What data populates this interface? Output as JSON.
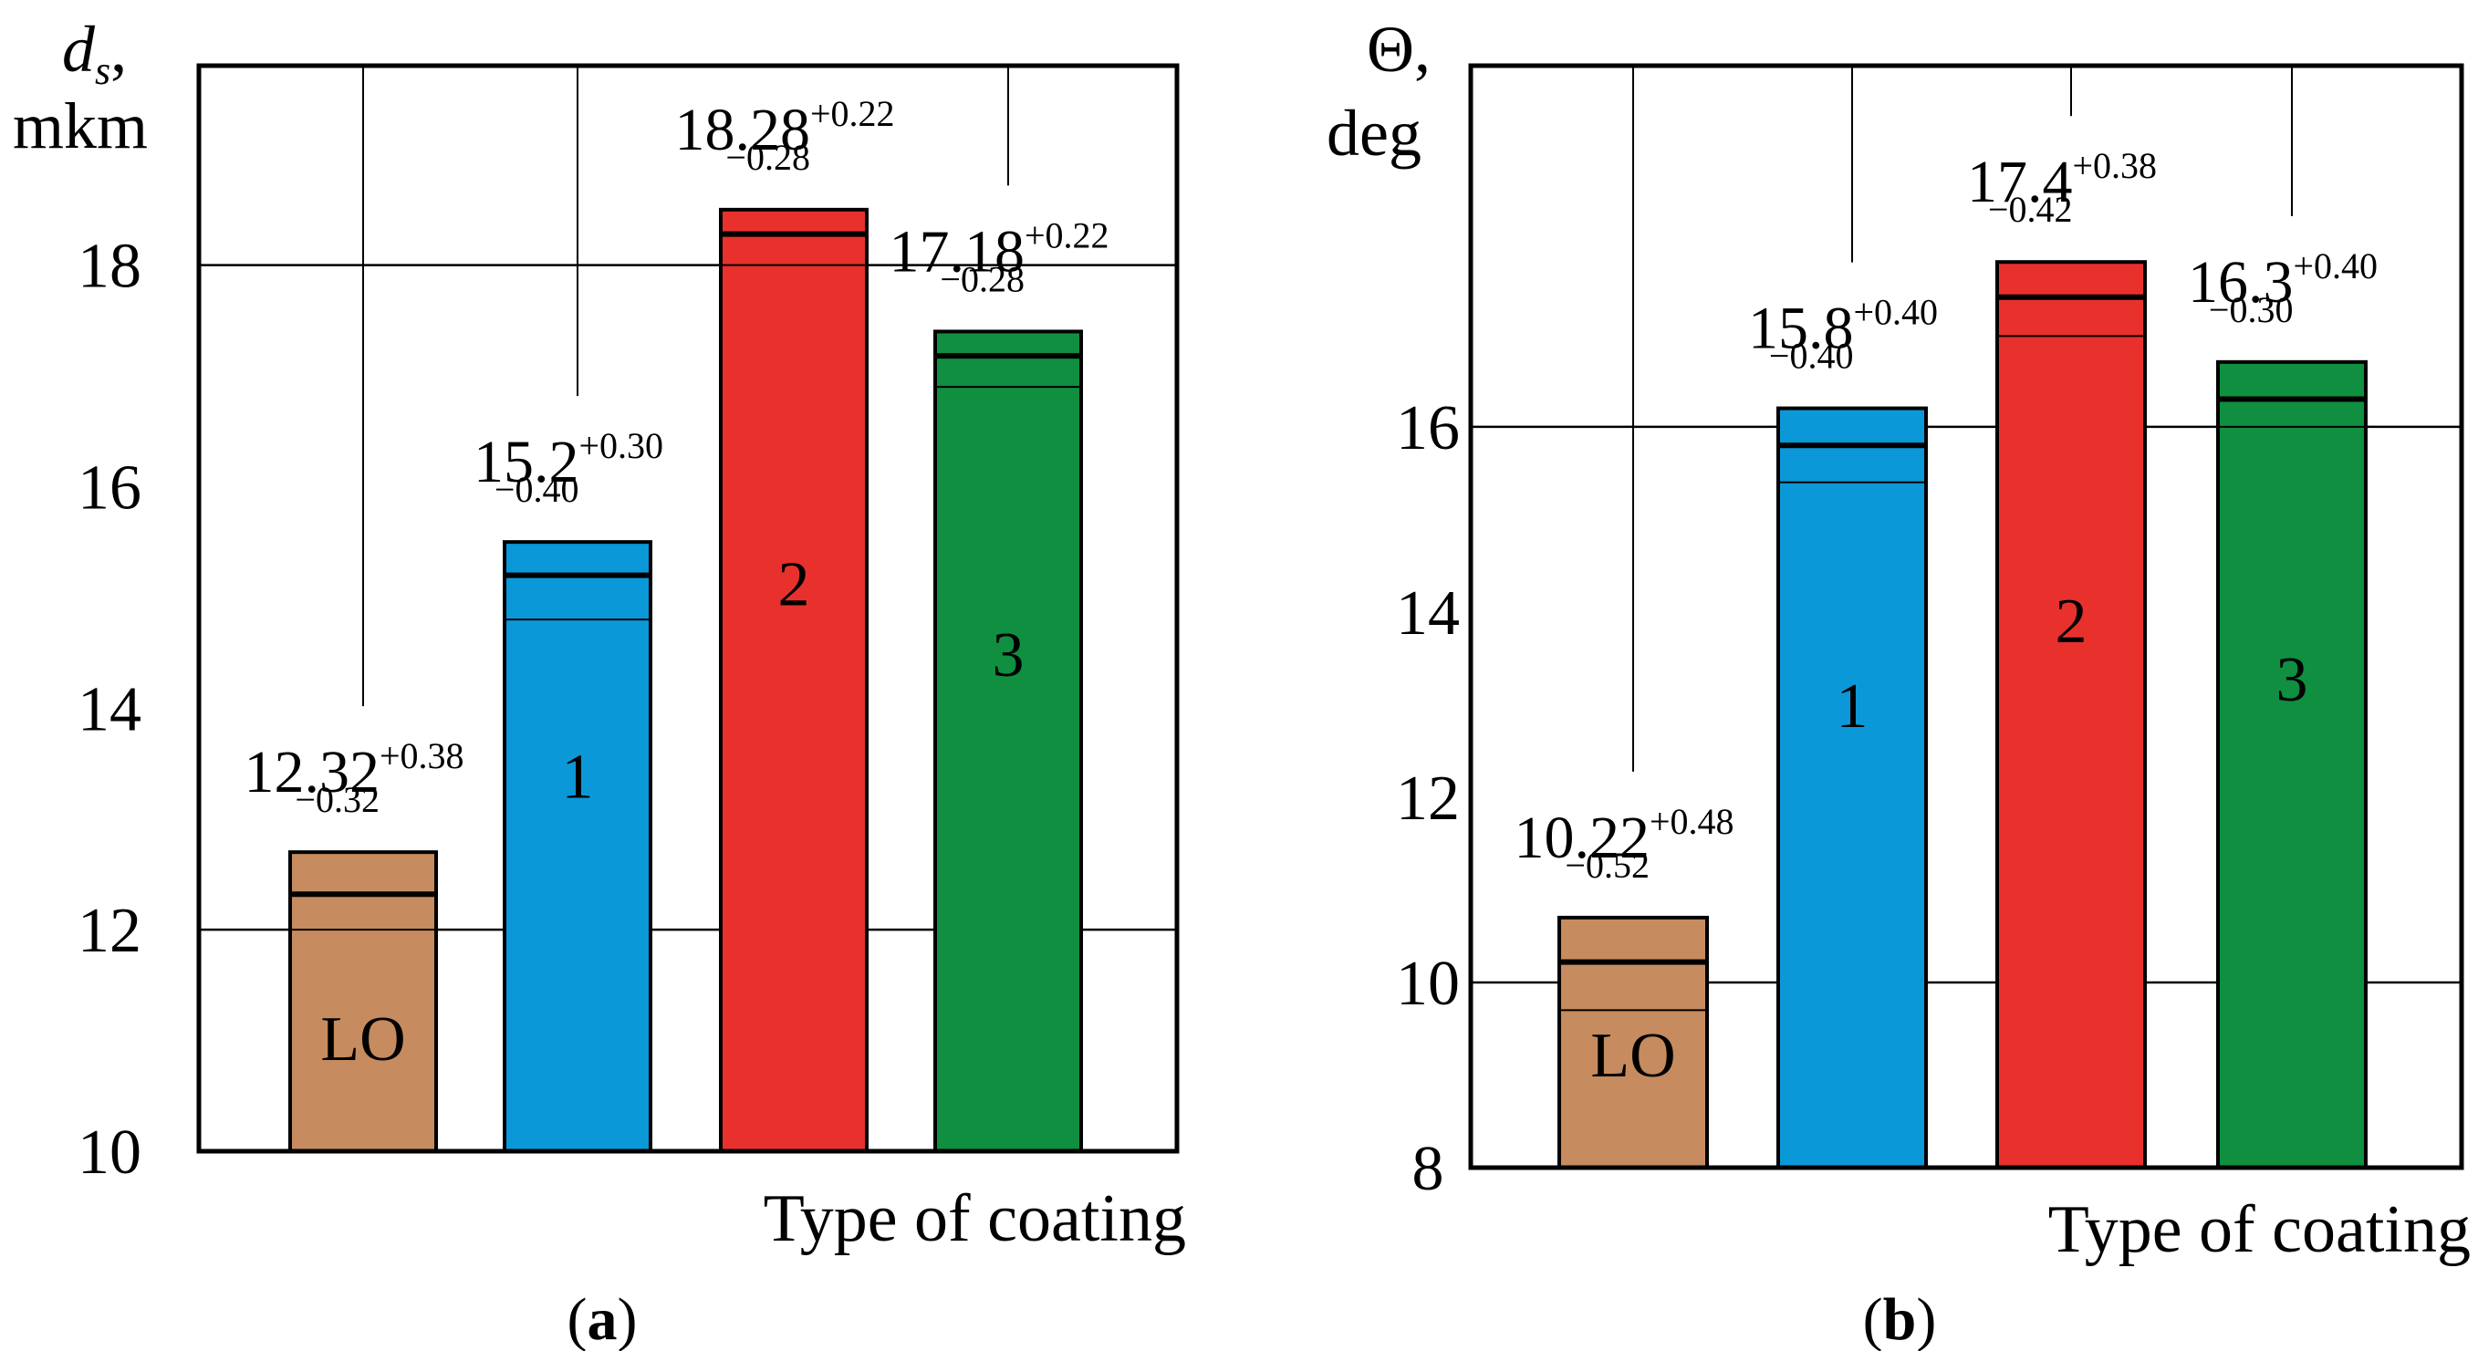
{
  "colors": {
    "LO": "#c68b5e",
    "1": "#0b98d8",
    "2": "#e8312c",
    "3": "#0f8f3f",
    "axis": "#000000",
    "grid": "#000000"
  },
  "chart_data": [
    {
      "type": "bar",
      "panel": "(a)",
      "panel_letter": "a",
      "y_symbol": "d",
      "y_subscript": "s",
      "y_unit": "mkm",
      "xlabel": "Type of coating",
      "ylim": [
        10,
        19.8
      ],
      "yticks": [
        10,
        12,
        14,
        16,
        18
      ],
      "gridlines_y": [
        12,
        18
      ],
      "categories": [
        "LO",
        "1",
        "2",
        "3"
      ],
      "bar_labels": [
        "LO",
        "1",
        "2",
        "3"
      ],
      "values": [
        12.32,
        15.2,
        18.28,
        17.18
      ],
      "err_plus": [
        0.38,
        0.3,
        0.22,
        0.22
      ],
      "err_minus": [
        0.32,
        0.4,
        0.28,
        0.28
      ],
      "value_labels": [
        "12.32",
        "15.2",
        "18.28",
        "17.18"
      ],
      "plus_labels": [
        "+0.38",
        "+0.30",
        "+0.22",
        "+0.22"
      ],
      "minus_labels": [
        "−0.32",
        "−0.40",
        "−0.28",
        "−0.28"
      ]
    },
    {
      "type": "bar",
      "panel": "(b)",
      "panel_letter": "b",
      "y_symbol": "Θ,",
      "y_unit": "deg",
      "xlabel": "Type of coating",
      "ylim": [
        8,
        19.9
      ],
      "yticks": [
        8,
        10,
        12,
        14,
        16
      ],
      "gridlines_y": [
        10,
        16
      ],
      "categories": [
        "LO",
        "1",
        "2",
        "3"
      ],
      "bar_labels": [
        "LO",
        "1",
        "2",
        "3"
      ],
      "values": [
        10.22,
        15.8,
        17.4,
        16.3
      ],
      "err_plus": [
        0.48,
        0.4,
        0.38,
        0.4
      ],
      "err_minus": [
        0.52,
        0.4,
        0.42,
        0.3
      ],
      "value_labels": [
        "10.22",
        "15.8",
        "17.4",
        "16.3"
      ],
      "plus_labels": [
        "+0.48",
        "+0.40",
        "+0.38",
        "+0.40"
      ],
      "minus_labels": [
        "−0.52",
        "−0.40",
        "−0.42",
        "−0.30"
      ]
    }
  ]
}
